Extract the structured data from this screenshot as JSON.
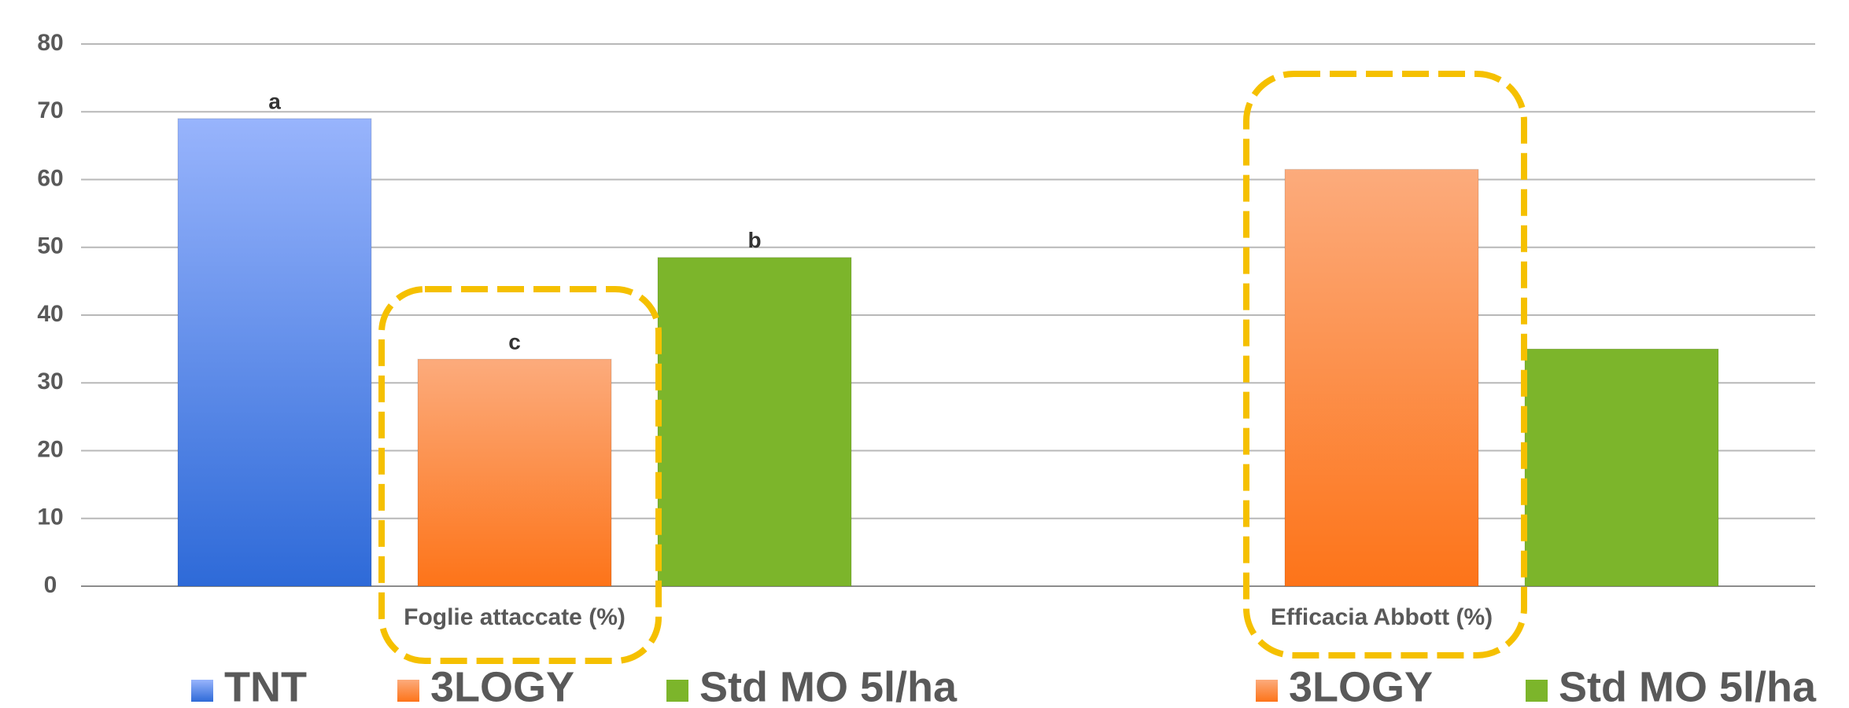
{
  "chart_data": {
    "type": "bar",
    "categories": [
      "Foglie attaccate (%)",
      "Efficacia Abbott (%)"
    ],
    "series": [
      {
        "name": "TNT",
        "color": "#2e6ad8",
        "gradient_top": "#98b4fc",
        "values": [
          69,
          null
        ],
        "significance_labels": [
          "a",
          null
        ]
      },
      {
        "name": "3LOGY",
        "color": "#fd7419",
        "gradient_top": "#fcab7c",
        "values": [
          33.5,
          61.5
        ],
        "significance_labels": [
          "c",
          null
        ]
      },
      {
        "name": "Std MO 5l/ha",
        "color": "#7cb52b",
        "values": [
          48.5,
          35
        ],
        "significance_labels": [
          "b",
          null
        ]
      }
    ],
    "ylim": [
      0,
      80
    ],
    "yticks": [
      0,
      10,
      20,
      30,
      40,
      50,
      60,
      70,
      80
    ],
    "grid": true
  }
}
